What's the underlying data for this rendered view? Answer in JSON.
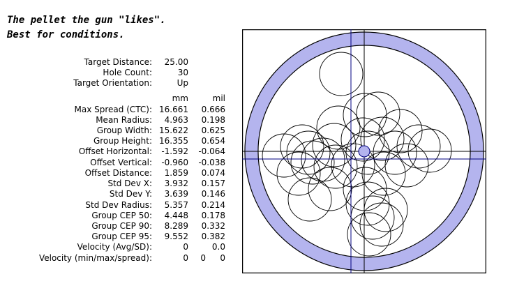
{
  "heading": {
    "line1": "The pellet the gun \"likes\".",
    "line2": "Best for conditions."
  },
  "summary": [
    {
      "label": "Target Distance:",
      "value": "25.00"
    },
    {
      "label": "Hole Count:",
      "value": "30"
    },
    {
      "label": "Target Orientation:",
      "value": "Up"
    }
  ],
  "units": {
    "mm": "mm",
    "mil": "mil"
  },
  "stats": [
    {
      "label": "Max Spread (CTC):",
      "mm": "16.661",
      "mil": "0.666"
    },
    {
      "label": "Mean Radius:",
      "mm": "4.963",
      "mil": "0.198"
    },
    {
      "label": "Group Width:",
      "mm": "15.622",
      "mil": "0.625"
    },
    {
      "label": "Group Height:",
      "mm": "16.355",
      "mil": "0.654"
    },
    {
      "label": "Offset Horizontal:",
      "mm": "-1.592",
      "mil": "-0.064"
    },
    {
      "label": "Offset Vertical:",
      "mm": "-0.960",
      "mil": "-0.038"
    },
    {
      "label": "Offset Distance:",
      "mm": "1.859",
      "mil": "0.074"
    },
    {
      "label": "Std Dev X:",
      "mm": "3.932",
      "mil": "0.157"
    },
    {
      "label": "Std Dev Y:",
      "mm": "3.639",
      "mil": "0.146"
    },
    {
      "label": "Std Dev Radius:",
      "mm": "5.357",
      "mil": "0.214"
    },
    {
      "label": "Group CEP 50:",
      "mm": "4.448",
      "mil": "0.178"
    },
    {
      "label": "Group CEP 90:",
      "mm": "8.289",
      "mil": "0.332"
    },
    {
      "label": "Group CEP 95:",
      "mm": "9.552",
      "mil": "0.382"
    }
  ],
  "velocity_avg": {
    "label": "Velocity (Avg/SD):",
    "avg": "0",
    "sd": "0.0"
  },
  "velocity_range": {
    "label": "Velocity (min/max/spread):",
    "min": "0",
    "max": "0",
    "spread": "0"
  },
  "colors": {
    "ring_fill": "#b4b4ee",
    "ring_stroke": "#000000",
    "group_center_line": "#000080",
    "aim_line": "#000000",
    "hole_stroke": "#000000"
  }
}
